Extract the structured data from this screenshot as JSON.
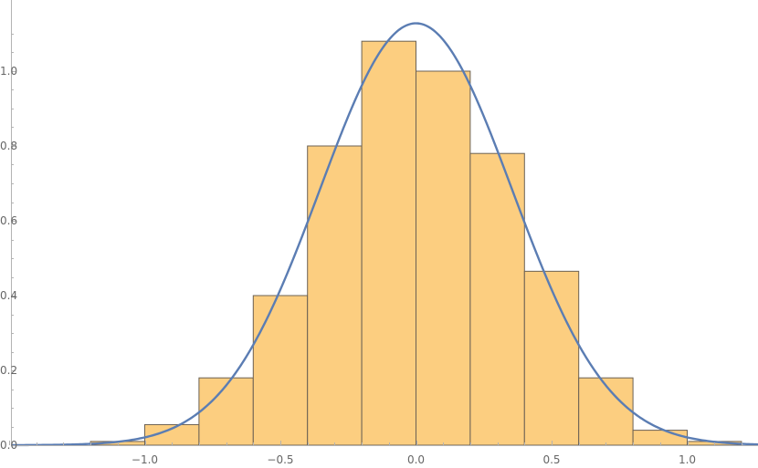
{
  "chart_data": {
    "type": "bar",
    "subtype": "histogram-with-density-curve",
    "title": "",
    "xlabel": "",
    "ylabel": "",
    "xlim": [
      -1.5,
      1.25
    ],
    "ylim": [
      0,
      1.15
    ],
    "grid": false,
    "legend": "none",
    "colors": {
      "bar_fill": "#fcce80",
      "bar_edge": "#6b6154",
      "curve": "#5b7db3",
      "axis": "#b3b3b3",
      "tick_label": "#666666"
    },
    "x_ticks": [
      {
        "value": -1.0,
        "label": "−1.0"
      },
      {
        "value": -0.5,
        "label": "−0.5"
      },
      {
        "value": 0.0,
        "label": "0.0"
      },
      {
        "value": 0.5,
        "label": "0.5"
      },
      {
        "value": 1.0,
        "label": "1.0"
      }
    ],
    "y_ticks": [
      {
        "value": 0.0,
        "label": "0.0"
      },
      {
        "value": 0.2,
        "label": "0.2"
      },
      {
        "value": 0.4,
        "label": "0.4"
      },
      {
        "value": 0.6,
        "label": "0.6"
      },
      {
        "value": 0.8,
        "label": "0.8"
      },
      {
        "value": 1.0,
        "label": "1.0"
      }
    ],
    "bins": [
      {
        "x0": -1.2,
        "x1": -1.0,
        "value": 0.01
      },
      {
        "x0": -1.0,
        "x1": -0.8,
        "value": 0.055
      },
      {
        "x0": -0.8,
        "x1": -0.6,
        "value": 0.18
      },
      {
        "x0": -0.6,
        "x1": -0.4,
        "value": 0.4
      },
      {
        "x0": -0.4,
        "x1": -0.2,
        "value": 0.8
      },
      {
        "x0": -0.2,
        "x1": 0.0,
        "value": 1.08
      },
      {
        "x0": 0.0,
        "x1": 0.2,
        "value": 1.0
      },
      {
        "x0": 0.2,
        "x1": 0.4,
        "value": 0.78
      },
      {
        "x0": 0.4,
        "x1": 0.6,
        "value": 0.465
      },
      {
        "x0": 0.6,
        "x1": 0.8,
        "value": 0.18
      },
      {
        "x0": 0.8,
        "x1": 1.0,
        "value": 0.04
      },
      {
        "x0": 1.0,
        "x1": 1.2,
        "value": 0.01
      }
    ],
    "curve": {
      "type": "normal-pdf",
      "mean": 0.0,
      "sd": 0.354,
      "peak": 1.128
    }
  }
}
